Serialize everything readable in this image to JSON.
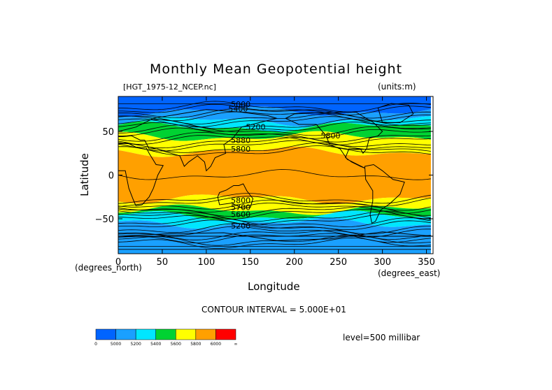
{
  "chart_data": {
    "type": "heatmap",
    "title": "Monthly Mean Geopotential height",
    "file_label": "[HGT_1975-12_NCEP.nc]",
    "units_label": "(units:m)",
    "xlabel": "Longitude",
    "ylabel": "Latitude",
    "x_units": "(degrees_east)",
    "y_units": "(degrees_north)",
    "xlim": [
      0,
      357.5
    ],
    "ylim": [
      -90,
      90
    ],
    "x_ticks": [
      "0",
      "50",
      "100",
      "150",
      "200",
      "250",
      "300",
      "350"
    ],
    "x_tick_values": [
      0,
      50,
      100,
      150,
      200,
      250,
      300,
      350
    ],
    "y_ticks": [
      "50",
      "0",
      "−50"
    ],
    "y_tick_values": [
      50,
      0,
      -50
    ],
    "contour_interval_text": "CONTOUR INTERVAL = 5.000E+01",
    "level_text": "level=500 millibar",
    "contour_labels": [
      {
        "text": "5000",
        "lon": 128,
        "lat": 78
      },
      {
        "text": "5400",
        "lon": 125,
        "lat": 73
      },
      {
        "text": "5200",
        "lon": 145,
        "lat": 52
      },
      {
        "text": "5800",
        "lon": 230,
        "lat": 42
      },
      {
        "text": "5880",
        "lon": 128,
        "lat": 37
      },
      {
        "text": "5800",
        "lon": 128,
        "lat": 27
      },
      {
        "text": "5800",
        "lon": 128,
        "lat": -32
      },
      {
        "text": "5700",
        "lon": 128,
        "lat": -40
      },
      {
        "text": "5600",
        "lon": 128,
        "lat": -48
      },
      {
        "text": "5200",
        "lon": 128,
        "lat": -61
      }
    ],
    "colorbar": {
      "colors": [
        "#0064ff",
        "#1aa0ff",
        "#00e6ff",
        "#00d232",
        "#ffff00",
        "#ffa000",
        "#ff0000"
      ],
      "labels": [
        "0",
        "5000",
        "5200",
        "5400",
        "5600",
        "5800",
        "6000",
        "∞"
      ]
    },
    "bands_north_to_south_lat": [
      {
        "from": 90,
        "to": 73,
        "color": "#0064ff"
      },
      {
        "from": 73,
        "to": 62,
        "color": "#1aa0ff"
      },
      {
        "from": 62,
        "to": 55,
        "color": "#00e6ff"
      },
      {
        "from": 55,
        "to": 44,
        "color": "#00d232"
      },
      {
        "from": 44,
        "to": 27,
        "color": "#ffff00"
      },
      {
        "from": 27,
        "to": -27,
        "color": "#ffa000"
      },
      {
        "from": -27,
        "to": -40,
        "color": "#ffff00"
      },
      {
        "from": -40,
        "to": -47,
        "color": "#00d232"
      },
      {
        "from": -47,
        "to": -55,
        "color": "#00e6ff"
      },
      {
        "from": -55,
        "to": -90,
        "color": "#1aa0ff"
      }
    ]
  }
}
